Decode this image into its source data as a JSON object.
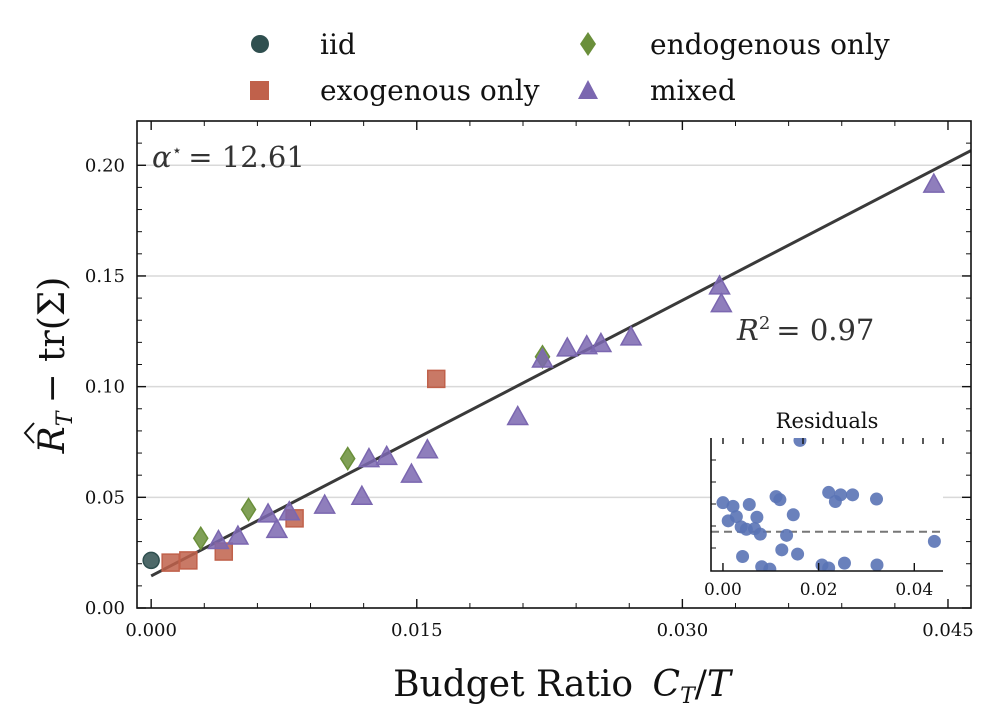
{
  "chart_data": [
    {
      "type": "scatter",
      "xlabel": "Budget Ratio C_T/T",
      "ylabel": "R̂_T − tr(Σ)",
      "xlim": [
        -0.0008,
        0.0463
      ],
      "ylim": [
        0.0,
        0.22
      ],
      "xticks": [
        "0.000",
        "0.015",
        "0.030",
        "0.045"
      ],
      "xtick_values": [
        0.0,
        0.015,
        0.03,
        0.045
      ],
      "yticks": [
        "0.00",
        "0.05",
        "0.10",
        "0.15",
        "0.20"
      ],
      "ytick_values": [
        0.0,
        0.05,
        0.1,
        0.15,
        0.2
      ],
      "grid": "horizontal",
      "legend": "top, outside plot, 2 columns",
      "annotations": [
        "α* = 12.61",
        "R² = 0.97"
      ],
      "fit_line": {
        "slope": 4.15,
        "intercept": 0.0145
      },
      "series": [
        {
          "name": "iid",
          "marker": "circle",
          "color": "#2f4f4f",
          "points": [
            [
              0.0,
              0.0215
            ]
          ]
        },
        {
          "name": "exogenous only",
          "marker": "square",
          "color": "#c0614b",
          "points": [
            [
              0.0011,
              0.0205
            ],
            [
              0.0021,
              0.0215
            ],
            [
              0.0041,
              0.0255
            ],
            [
              0.0081,
              0.0405
            ],
            [
              0.0161,
              0.1035
            ]
          ]
        },
        {
          "name": "endogenous only",
          "marker": "diamond",
          "color": "#6a8f3a",
          "points": [
            [
              0.0028,
              0.0315
            ],
            [
              0.0055,
              0.0445
            ],
            [
              0.0111,
              0.0675
            ],
            [
              0.0221,
              0.1135
            ]
          ]
        },
        {
          "name": "mixed",
          "marker": "triangle",
          "color": "#7b67b0",
          "points": [
            [
              0.0038,
              0.0305
            ],
            [
              0.0049,
              0.0325
            ],
            [
              0.0066,
              0.0425
            ],
            [
              0.0071,
              0.0355
            ],
            [
              0.0078,
              0.0435
            ],
            [
              0.0098,
              0.0465
            ],
            [
              0.0119,
              0.0505
            ],
            [
              0.0123,
              0.0675
            ],
            [
              0.0133,
              0.0685
            ],
            [
              0.0147,
              0.0605
            ],
            [
              0.0156,
              0.0715
            ],
            [
              0.0207,
              0.0865
            ],
            [
              0.0221,
              0.1125
            ],
            [
              0.0235,
              0.1175
            ],
            [
              0.0246,
              0.1185
            ],
            [
              0.0254,
              0.1195
            ],
            [
              0.0271,
              0.1225
            ],
            [
              0.0321,
              0.1455
            ],
            [
              0.0322,
              0.1375
            ],
            [
              0.0442,
              0.1915
            ]
          ]
        }
      ]
    },
    {
      "type": "scatter",
      "title": "Residuals",
      "xlim": [
        -0.0025,
        0.046
      ],
      "ylim": [
        -0.0065,
        0.0155
      ],
      "xticks": [
        "0.00",
        "0.02",
        "0.04"
      ],
      "xtick_values": [
        0.0,
        0.02,
        0.04
      ],
      "zero_line": "dashed",
      "color": "#5a73b5",
      "points": [
        [
          0.0,
          0.0048
        ],
        [
          0.0011,
          0.0018
        ],
        [
          0.0021,
          0.0042
        ],
        [
          0.0028,
          0.0025
        ],
        [
          0.0038,
          0.0008
        ],
        [
          0.0041,
          -0.0041
        ],
        [
          0.0049,
          0.0004
        ],
        [
          0.0055,
          0.0045
        ],
        [
          0.0066,
          0.0005
        ],
        [
          0.0071,
          0.0024
        ],
        [
          0.0078,
          -0.0004
        ],
        [
          0.0081,
          -0.0058
        ],
        [
          0.0098,
          -0.0062
        ],
        [
          0.0111,
          0.0058
        ],
        [
          0.0119,
          0.0053
        ],
        [
          0.0123,
          -0.003
        ],
        [
          0.0133,
          -0.0006
        ],
        [
          0.0147,
          0.0028
        ],
        [
          0.0156,
          -0.0037
        ],
        [
          0.0161,
          0.0151
        ],
        [
          0.0207,
          -0.0055
        ],
        [
          0.0221,
          0.0065
        ],
        [
          0.0221,
          -0.006
        ],
        [
          0.0235,
          0.005
        ],
        [
          0.0246,
          0.0061
        ],
        [
          0.0254,
          -0.0052
        ],
        [
          0.0271,
          0.0061
        ],
        [
          0.0321,
          0.0054
        ],
        [
          0.0322,
          -0.0055
        ],
        [
          0.0442,
          -0.0016
        ]
      ]
    }
  ],
  "legend": {
    "iid": "iid",
    "exogenous": "exogenous only",
    "endogenous": "endogenous only",
    "mixed": "mixed"
  },
  "annotations": {
    "alpha_value": "= 12.61",
    "r2_value": "= 0.97"
  },
  "axis_titles": {
    "x_text": "Budget Ratio",
    "y_text": "− tr(Σ)"
  },
  "inset": {
    "title": "Residuals"
  }
}
